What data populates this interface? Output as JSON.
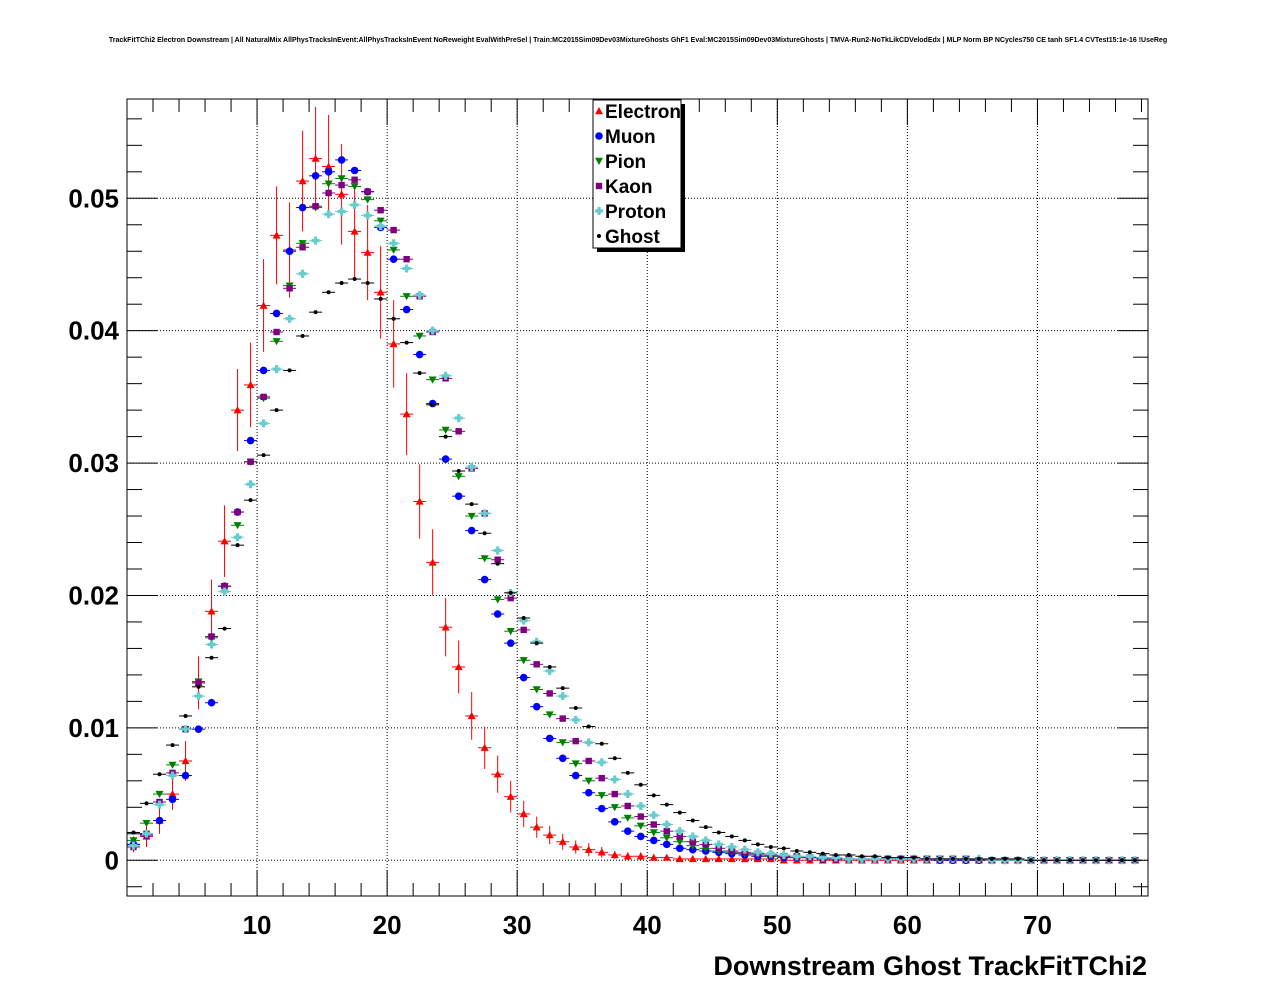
{
  "chart_data": {
    "type": "scatter",
    "title": "TrackFitTChi2 Electron Downstream | All NaturalMix AllPhysTracksInEvent:AllPhysTracksInEvent NoReweight EvalWithPreSel | Train:MC2015Sim09Dev03MixtureGhosts GhF1 Eval:MC2015Sim09Dev03MixtureGhosts | TMVA-Run2-NoTkLikCDVelodEdx | MLP Norm BP NCycles750 CE tanh SF1.4 CVTest15:1e-16 !UseReg",
    "xlabel": "Downstream Ghost TrackFitTChi2",
    "ylabel": "",
    "xlim": [
      0,
      78.5
    ],
    "ylim": [
      -0.0027,
      0.0575
    ],
    "xticks": [
      10,
      20,
      30,
      40,
      50,
      60,
      70
    ],
    "xtick_labels": [
      "10",
      "20",
      "30",
      "40",
      "50",
      "60",
      "70"
    ],
    "yticks": [
      0,
      0.01,
      0.02,
      0.03,
      0.04,
      0.05
    ],
    "ytick_labels": [
      "0",
      "0.01",
      "0.02",
      "0.03",
      "0.04",
      "0.05"
    ],
    "grid": true,
    "legend_position": "top-center",
    "series": [
      {
        "name": "Electron",
        "color": "#ff0000",
        "marker": "triangle-up",
        "x": [
          0.5,
          1.5,
          2.5,
          3.5,
          4.5,
          5.5,
          6.5,
          7.5,
          8.5,
          9.5,
          10.5,
          11.5,
          12.5,
          13.5,
          14.5,
          15.5,
          16.5,
          17.5,
          18.5,
          19.5,
          20.5,
          21.5,
          22.5,
          23.5,
          24.5,
          25.5,
          26.5,
          27.5,
          28.5,
          29.5,
          30.5,
          31.5,
          32.5,
          33.5,
          34.5,
          35.5,
          36.5,
          37.5,
          38.5,
          39.5,
          40.5,
          41.5,
          42.5,
          43.5,
          44.5,
          45.5,
          46.5,
          47.5,
          48.5,
          49.5,
          50.5,
          51.5,
          52.5,
          53.5,
          54.5,
          55.5,
          56.5,
          57.5,
          58.5,
          59.5,
          60.5,
          61.5,
          62.5,
          63.5,
          64.5,
          65.5,
          66.5,
          67.5,
          68.5,
          69.5,
          70.5,
          71.5,
          72.5,
          73.5,
          74.5,
          75.5,
          76.5,
          77.5
        ],
        "y": [
          0.0012,
          0.0018,
          0.003,
          0.005,
          0.0075,
          0.0134,
          0.0188,
          0.0241,
          0.034,
          0.0359,
          0.0419,
          0.0472,
          0.0461,
          0.0513,
          0.053,
          0.0524,
          0.0503,
          0.0475,
          0.0459,
          0.0429,
          0.039,
          0.0337,
          0.0271,
          0.0225,
          0.0176,
          0.0146,
          0.0109,
          0.0085,
          0.0065,
          0.0048,
          0.0035,
          0.0025,
          0.0019,
          0.0014,
          0.001,
          0.0008,
          0.0006,
          0.0004,
          0.0003,
          0.0003,
          0.0002,
          0.0002,
          0.0001,
          0.0001,
          0.0001,
          0.0001,
          0.0001,
          0.0001,
          0.0001,
          0.0001,
          0,
          0,
          0,
          0,
          0,
          0,
          0,
          0,
          0,
          0,
          0,
          0,
          0,
          0,
          0,
          0,
          0,
          0,
          0,
          0,
          0,
          0,
          0,
          0,
          0,
          0,
          0,
          0
        ],
        "err": [
          0.0006,
          0.0008,
          0.001,
          0.0012,
          0.0015,
          0.002,
          0.0024,
          0.0027,
          0.0031,
          0.0032,
          0.0035,
          0.0037,
          0.0036,
          0.0038,
          0.0039,
          0.0039,
          0.0038,
          0.0037,
          0.0036,
          0.0035,
          0.0033,
          0.0031,
          0.0028,
          0.0025,
          0.0022,
          0.002,
          0.0018,
          0.0016,
          0.0014,
          0.0012,
          0.001,
          0.0008,
          0.0007,
          0.0006,
          0.0005,
          0.0005,
          0.0004,
          0.0003,
          0.0003,
          0.0003,
          0.0002,
          0.0002,
          0.0001,
          0.0001,
          0.0001,
          0.0001,
          0.0001,
          0.0001,
          0.0001,
          0.0001,
          0,
          0,
          0,
          0,
          0,
          0,
          0,
          0,
          0,
          0,
          0,
          0,
          0,
          0,
          0,
          0,
          0,
          0,
          0,
          0,
          0,
          0,
          0,
          0,
          0,
          0,
          0,
          0
        ]
      },
      {
        "name": "Muon",
        "color": "#0000ff",
        "marker": "circle",
        "x": [
          0.5,
          1.5,
          2.5,
          3.5,
          4.5,
          5.5,
          6.5,
          7.5,
          8.5,
          9.5,
          10.5,
          11.5,
          12.5,
          13.5,
          14.5,
          15.5,
          16.5,
          17.5,
          18.5,
          19.5,
          20.5,
          21.5,
          22.5,
          23.5,
          24.5,
          25.5,
          26.5,
          27.5,
          28.5,
          29.5,
          30.5,
          31.5,
          32.5,
          33.5,
          34.5,
          35.5,
          36.5,
          37.5,
          38.5,
          39.5,
          40.5,
          41.5,
          42.5,
          43.5,
          44.5,
          45.5,
          46.5,
          47.5,
          48.5,
          49.5,
          50.5,
          51.5,
          52.5,
          53.5,
          54.5,
          55.5,
          56.5,
          57.5,
          58.5,
          59.5,
          60.5,
          61.5,
          62.5,
          63.5,
          64.5,
          65.5,
          66.5,
          67.5,
          68.5,
          69.5,
          70.5,
          71.5,
          72.5,
          73.5,
          74.5,
          75.5,
          76.5,
          77.5
        ],
        "y": [
          0.0012,
          0.0019,
          0.003,
          0.0046,
          0.0064,
          0.0099,
          0.0119,
          0.0207,
          0.0263,
          0.0317,
          0.037,
          0.0413,
          0.046,
          0.0493,
          0.0517,
          0.052,
          0.0529,
          0.0521,
          0.0505,
          0.0478,
          0.0454,
          0.0416,
          0.0382,
          0.0345,
          0.0303,
          0.0275,
          0.0249,
          0.0212,
          0.0186,
          0.0164,
          0.0138,
          0.0116,
          0.0092,
          0.0077,
          0.0064,
          0.0051,
          0.0039,
          0.0029,
          0.0022,
          0.0018,
          0.0015,
          0.0012,
          0.0009,
          0.0008,
          0.0007,
          0.0006,
          0.0005,
          0.0004,
          0.0003,
          0.0003,
          0.0002,
          0.0002,
          0.0002,
          0.0001,
          0.0001,
          0.0001,
          0.0001,
          0.0001,
          0.0001,
          0.0001,
          0.0001,
          0.0001,
          0,
          0,
          0,
          0,
          0,
          0,
          0,
          0,
          0,
          0,
          0,
          0,
          0,
          0,
          0,
          0
        ]
      },
      {
        "name": "Pion",
        "color": "#008000",
        "marker": "triangle-down",
        "x": [
          0.5,
          1.5,
          2.5,
          3.5,
          4.5,
          5.5,
          6.5,
          7.5,
          8.5,
          9.5,
          10.5,
          11.5,
          12.5,
          13.5,
          14.5,
          15.5,
          16.5,
          17.5,
          18.5,
          19.5,
          20.5,
          21.5,
          22.5,
          23.5,
          24.5,
          25.5,
          26.5,
          27.5,
          28.5,
          29.5,
          30.5,
          31.5,
          32.5,
          33.5,
          34.5,
          35.5,
          36.5,
          37.5,
          38.5,
          39.5,
          40.5,
          41.5,
          42.5,
          43.5,
          44.5,
          45.5,
          46.5,
          47.5,
          48.5,
          49.5,
          50.5,
          51.5,
          52.5,
          53.5,
          54.5,
          55.5,
          56.5,
          57.5,
          58.5,
          59.5,
          60.5,
          61.5,
          62.5,
          63.5,
          64.5,
          65.5,
          66.5,
          67.5,
          68.5,
          69.5,
          70.5,
          71.5,
          72.5,
          73.5,
          74.5,
          75.5,
          76.5,
          77.5
        ],
        "y": [
          0.0015,
          0.0028,
          0.005,
          0.0072,
          0.0099,
          0.0135,
          0.0168,
          0.0207,
          0.0253,
          0.0301,
          0.0349,
          0.0392,
          0.0434,
          0.0466,
          0.0493,
          0.0511,
          0.0515,
          0.0509,
          0.0499,
          0.0483,
          0.0461,
          0.0426,
          0.0396,
          0.0363,
          0.0325,
          0.029,
          0.026,
          0.0228,
          0.0197,
          0.0173,
          0.0151,
          0.0129,
          0.011,
          0.0089,
          0.0073,
          0.006,
          0.0049,
          0.004,
          0.0032,
          0.0026,
          0.0021,
          0.0017,
          0.0014,
          0.0011,
          0.0009,
          0.0007,
          0.0006,
          0.0005,
          0.0004,
          0.0003,
          0.0003,
          0.0002,
          0.0002,
          0.0002,
          0.0001,
          0.0001,
          0.0001,
          0.0001,
          0.0001,
          0.0001,
          0.0001,
          0.0001,
          0.0001,
          0.0001,
          0.0001,
          0,
          0,
          0,
          0,
          0,
          0,
          0,
          0,
          0,
          0,
          0,
          0,
          0
        ]
      },
      {
        "name": "Kaon",
        "color": "#800080",
        "marker": "square",
        "x": [
          0.5,
          1.5,
          2.5,
          3.5,
          4.5,
          5.5,
          6.5,
          7.5,
          8.5,
          9.5,
          10.5,
          11.5,
          12.5,
          13.5,
          14.5,
          15.5,
          16.5,
          17.5,
          18.5,
          19.5,
          20.5,
          21.5,
          22.5,
          23.5,
          24.5,
          25.5,
          26.5,
          27.5,
          28.5,
          29.5,
          30.5,
          31.5,
          32.5,
          33.5,
          34.5,
          35.5,
          36.5,
          37.5,
          38.5,
          39.5,
          40.5,
          41.5,
          42.5,
          43.5,
          44.5,
          45.5,
          46.5,
          47.5,
          48.5,
          49.5,
          50.5,
          51.5,
          52.5,
          53.5,
          54.5,
          55.5,
          56.5,
          57.5,
          58.5,
          59.5,
          60.5,
          61.5,
          62.5,
          63.5,
          64.5,
          65.5,
          66.5,
          67.5,
          68.5,
          69.5,
          70.5,
          71.5,
          72.5,
          73.5,
          74.5,
          75.5,
          76.5,
          77.5
        ],
        "y": [
          0.001,
          0.002,
          0.0044,
          0.0066,
          0.0099,
          0.0134,
          0.0169,
          0.0207,
          0.0263,
          0.0301,
          0.035,
          0.0399,
          0.0432,
          0.0463,
          0.0494,
          0.0504,
          0.051,
          0.0514,
          0.0505,
          0.0491,
          0.0476,
          0.0454,
          0.0426,
          0.0399,
          0.0364,
          0.0324,
          0.0296,
          0.0262,
          0.0227,
          0.0198,
          0.0174,
          0.0148,
          0.0126,
          0.0107,
          0.009,
          0.0075,
          0.0062,
          0.005,
          0.0041,
          0.0033,
          0.0027,
          0.0022,
          0.0018,
          0.0014,
          0.0012,
          0.0009,
          0.0007,
          0.0006,
          0.0005,
          0.0004,
          0.0003,
          0.0003,
          0.0002,
          0.0002,
          0.0001,
          0.0001,
          0.0001,
          0.0001,
          0.0001,
          0.0001,
          0.0001,
          0.0001,
          0.0001,
          0.0001,
          0.0001,
          0,
          0,
          0,
          0,
          0,
          0,
          0,
          0,
          0,
          0,
          0,
          0,
          0
        ]
      },
      {
        "name": "Proton",
        "color": "#66cccc",
        "marker": "cross",
        "x": [
          0.5,
          1.5,
          2.5,
          3.5,
          4.5,
          5.5,
          6.5,
          7.5,
          8.5,
          9.5,
          10.5,
          11.5,
          12.5,
          13.5,
          14.5,
          15.5,
          16.5,
          17.5,
          18.5,
          19.5,
          20.5,
          21.5,
          22.5,
          23.5,
          24.5,
          25.5,
          26.5,
          27.5,
          28.5,
          29.5,
          30.5,
          31.5,
          32.5,
          33.5,
          34.5,
          35.5,
          36.5,
          37.5,
          38.5,
          39.5,
          40.5,
          41.5,
          42.5,
          43.5,
          44.5,
          45.5,
          46.5,
          47.5,
          48.5,
          49.5,
          50.5,
          51.5,
          52.5,
          53.5,
          54.5,
          55.5,
          56.5,
          57.5,
          58.5,
          59.5,
          60.5,
          61.5,
          62.5,
          63.5,
          64.5,
          65.5,
          66.5,
          67.5,
          68.5,
          69.5,
          70.5,
          71.5,
          72.5,
          73.5,
          74.5,
          75.5,
          76.5,
          77.5
        ],
        "y": [
          0.0011,
          0.002,
          0.0042,
          0.0064,
          0.0099,
          0.0124,
          0.0163,
          0.0203,
          0.0244,
          0.0284,
          0.033,
          0.0371,
          0.0409,
          0.0443,
          0.0468,
          0.0488,
          0.049,
          0.0495,
          0.0487,
          0.0479,
          0.0466,
          0.0447,
          0.0427,
          0.04,
          0.0366,
          0.0334,
          0.0297,
          0.0262,
          0.0234,
          0.0202,
          0.0181,
          0.0165,
          0.0143,
          0.0124,
          0.0106,
          0.0089,
          0.0074,
          0.0061,
          0.005,
          0.0041,
          0.0034,
          0.0027,
          0.0022,
          0.0018,
          0.0015,
          0.0012,
          0.001,
          0.0008,
          0.0006,
          0.0005,
          0.0004,
          0.0003,
          0.0003,
          0.0002,
          0.0002,
          0.0001,
          0.0001,
          0.0001,
          0.0001,
          0.0001,
          0.0001,
          0.0001,
          0.0001,
          0.0001,
          0.0001,
          0.0001,
          0,
          0,
          0,
          0,
          0,
          0,
          0,
          0,
          0,
          0,
          0,
          0
        ]
      },
      {
        "name": "Ghost",
        "color": "#000000",
        "marker": "dot",
        "x": [
          0.5,
          1.5,
          2.5,
          3.5,
          4.5,
          5.5,
          6.5,
          7.5,
          8.5,
          9.5,
          10.5,
          11.5,
          12.5,
          13.5,
          14.5,
          15.5,
          16.5,
          17.5,
          18.5,
          19.5,
          20.5,
          21.5,
          22.5,
          23.5,
          24.5,
          25.5,
          26.5,
          27.5,
          28.5,
          29.5,
          30.5,
          31.5,
          32.5,
          33.5,
          34.5,
          35.5,
          36.5,
          37.5,
          38.5,
          39.5,
          40.5,
          41.5,
          42.5,
          43.5,
          44.5,
          45.5,
          46.5,
          47.5,
          48.5,
          49.5,
          50.5,
          51.5,
          52.5,
          53.5,
          54.5,
          55.5,
          56.5,
          57.5,
          58.5,
          59.5,
          60.5,
          61.5,
          62.5,
          63.5,
          64.5,
          65.5,
          66.5,
          67.5,
          68.5,
          69.5,
          70.5,
          71.5,
          72.5,
          73.5,
          74.5,
          75.5,
          76.5,
          77.5
        ],
        "y": [
          0.0021,
          0.0043,
          0.0065,
          0.0087,
          0.0109,
          0.0131,
          0.0153,
          0.0175,
          0.0238,
          0.0272,
          0.0306,
          0.034,
          0.037,
          0.0396,
          0.0414,
          0.0429,
          0.0436,
          0.0439,
          0.0436,
          0.0424,
          0.0409,
          0.0391,
          0.0368,
          0.0344,
          0.032,
          0.0294,
          0.0269,
          0.0247,
          0.0224,
          0.0202,
          0.0183,
          0.0164,
          0.0146,
          0.013,
          0.0115,
          0.0101,
          0.0088,
          0.0077,
          0.0066,
          0.0057,
          0.0049,
          0.0042,
          0.0036,
          0.003,
          0.0025,
          0.0021,
          0.0018,
          0.0015,
          0.0012,
          0.001,
          0.0009,
          0.0007,
          0.0006,
          0.0005,
          0.0004,
          0.0004,
          0.0003,
          0.0003,
          0.0002,
          0.0002,
          0.0002,
          0.0001,
          0.0001,
          0.0001,
          0.0001,
          0.0001,
          0.0001,
          0.0001,
          0.0001,
          0,
          0,
          0,
          0,
          0,
          0,
          0,
          0,
          0
        ]
      }
    ]
  }
}
